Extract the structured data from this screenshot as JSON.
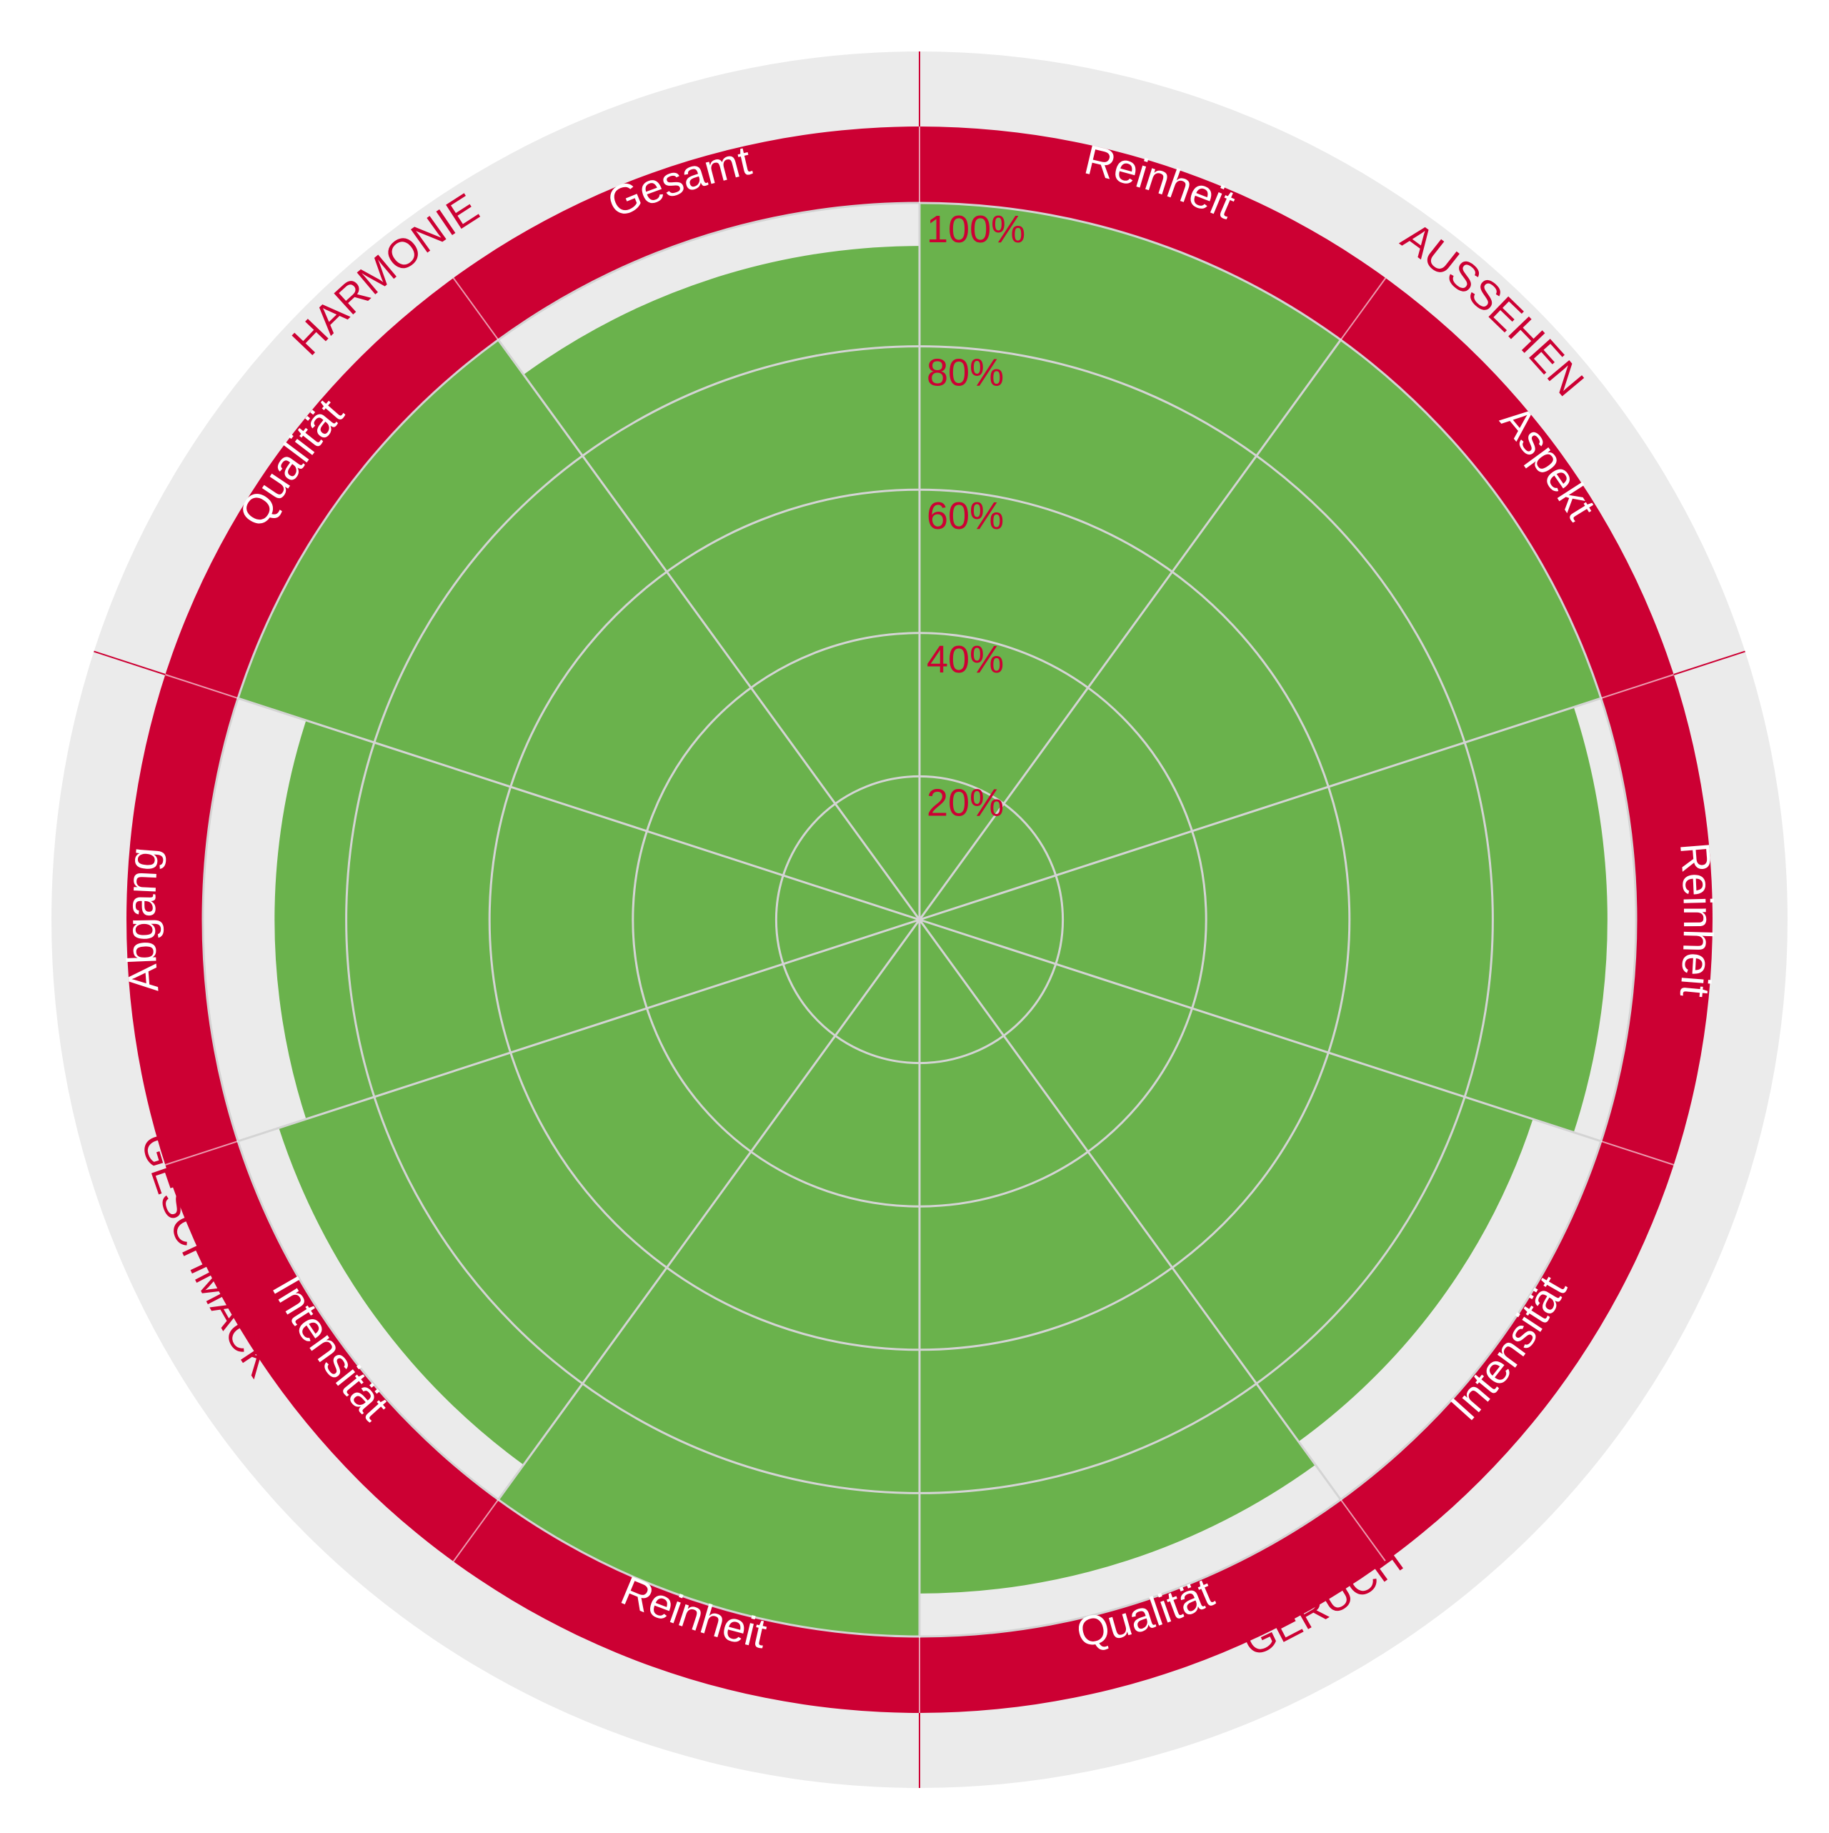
{
  "chart_data": {
    "type": "polar-area",
    "categories": [
      "Reinheit",
      "Aspekt",
      "Reinheit",
      "Intensität",
      "Qualität",
      "Reinheit",
      "Intensität",
      "Abgang",
      "Qualität",
      "Gesamt"
    ],
    "values": [
      100,
      100,
      96,
      90,
      94,
      100,
      94,
      90,
      100,
      94
    ],
    "groups": [
      {
        "name": "AUSSEHEN",
        "members": [
          0,
          1
        ]
      },
      {
        "name": "GERUCH",
        "members": [
          2,
          3,
          4
        ]
      },
      {
        "name": "GESCHMACK",
        "members": [
          5,
          6,
          7
        ]
      },
      {
        "name": "HARMONIE",
        "members": [
          8,
          9
        ]
      }
    ],
    "radial_ticks": [
      "20%",
      "40%",
      "60%",
      "80%",
      "100%"
    ],
    "radial_range": [
      0,
      100
    ],
    "grid": true,
    "colors": {
      "fill": "#6ab24c",
      "gap": "#ebebeb",
      "category_ring": "#cc0033",
      "group_ring": "#ebebeb",
      "grid": "#d4d4d4",
      "tick_text": "#cc0033",
      "category_text": "#ffffff",
      "group_text": "#cc0033"
    }
  }
}
